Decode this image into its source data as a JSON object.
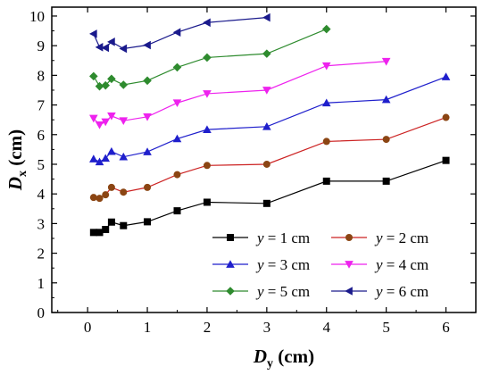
{
  "chart_data": {
    "type": "line",
    "xlabel": {
      "main": "D",
      "sub": "y",
      "unit": " (cm)"
    },
    "ylabel": {
      "main": "D",
      "sub": "x",
      "unit": " (cm)"
    },
    "xlim": [
      -0.6,
      6.5
    ],
    "ylim": [
      0,
      10.3
    ],
    "xticks": [
      "0",
      "1",
      "2",
      "3",
      "4",
      "5",
      "6"
    ],
    "yticks": [
      "0",
      "1",
      "2",
      "3",
      "4",
      "5",
      "6",
      "7",
      "8",
      "9",
      "10"
    ],
    "legend_position": "bottom-right",
    "series": [
      {
        "name": "y = 1 cm",
        "name_var": "y",
        "name_rest": " = 1 cm",
        "marker": "square",
        "color": "#000000",
        "x": [
          0.1,
          0.2,
          0.3,
          0.4,
          0.6,
          1,
          1.5,
          2,
          3,
          4,
          5,
          6
        ],
        "y": [
          2.7,
          2.7,
          2.8,
          3.05,
          2.93,
          3.06,
          3.43,
          3.72,
          3.68,
          4.43,
          4.43,
          5.13
        ]
      },
      {
        "name": "y = 2 cm",
        "name_var": "y",
        "name_rest": " = 2 cm",
        "marker": "circle",
        "color": "#8b4513",
        "line_color": "#cc2222",
        "x": [
          0.1,
          0.2,
          0.3,
          0.4,
          0.6,
          1,
          1.5,
          2,
          3,
          4,
          5,
          6
        ],
        "y": [
          3.88,
          3.85,
          3.97,
          4.22,
          4.06,
          4.22,
          4.65,
          4.96,
          5.0,
          5.77,
          5.84,
          6.58
        ]
      },
      {
        "name": "y = 3 cm",
        "name_var": "y",
        "name_rest": " = 3 cm",
        "marker": "triangle-up",
        "color": "#1f1fcc",
        "x": [
          0.1,
          0.2,
          0.3,
          0.4,
          0.6,
          1,
          1.5,
          2,
          3,
          4,
          5,
          6
        ],
        "y": [
          5.18,
          5.08,
          5.2,
          5.43,
          5.25,
          5.42,
          5.86,
          6.17,
          6.27,
          7.07,
          7.18,
          7.95
        ]
      },
      {
        "name": "y = 4 cm",
        "name_var": "y",
        "name_rest": " = 4 cm",
        "marker": "triangle-down",
        "color": "#ee22ee",
        "x": [
          0.1,
          0.2,
          0.3,
          0.4,
          0.6,
          1,
          1.5,
          2,
          3,
          4,
          5
        ],
        "y": [
          6.55,
          6.33,
          6.43,
          6.63,
          6.47,
          6.6,
          7.07,
          7.38,
          7.5,
          8.32,
          8.47
        ]
      },
      {
        "name": "y = 5 cm",
        "name_var": "y",
        "name_rest": " = 5 cm",
        "marker": "diamond",
        "color": "#2e8b2e",
        "x": [
          0.1,
          0.2,
          0.3,
          0.4,
          0.6,
          1,
          1.5,
          2,
          3,
          4
        ],
        "y": [
          7.97,
          7.63,
          7.66,
          7.88,
          7.68,
          7.82,
          8.27,
          8.6,
          8.73,
          9.56
        ]
      },
      {
        "name": "y = 6 cm",
        "name_var": "y",
        "name_rest": " = 6 cm",
        "marker": "triangle-left",
        "color": "#1a1a8c",
        "x": [
          0.1,
          0.2,
          0.3,
          0.4,
          0.6,
          1,
          1.5,
          2,
          3
        ],
        "y": [
          9.4,
          8.95,
          8.93,
          9.13,
          8.9,
          9.02,
          9.45,
          9.78,
          9.95
        ]
      }
    ]
  }
}
